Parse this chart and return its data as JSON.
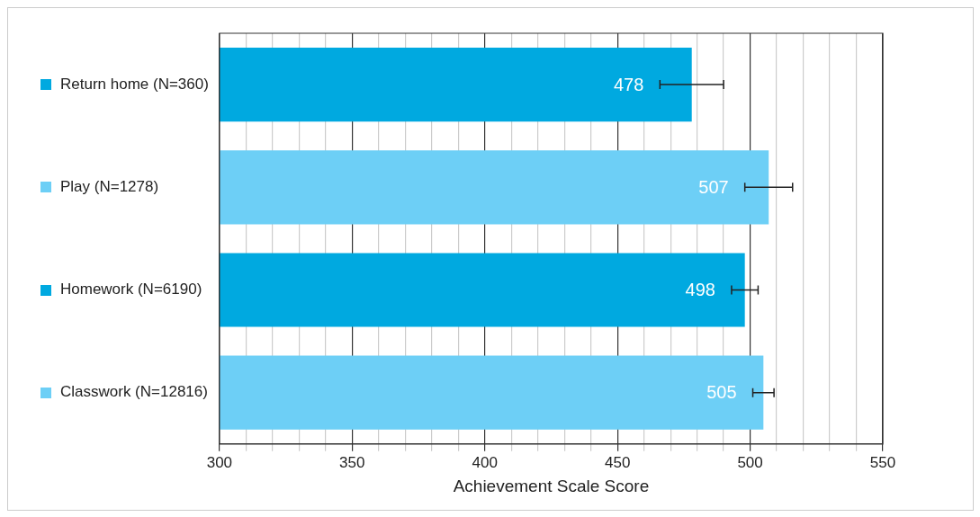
{
  "chart_data": {
    "type": "bar",
    "orientation": "horizontal",
    "xlabel": "Achievement Scale Score",
    "categories": [
      "Return home (N=360)",
      "Play (N=1278)",
      "Homework (N=6190)",
      "Classwork (N=12816)"
    ],
    "values": [
      478,
      507,
      498,
      505
    ],
    "colors": [
      "#00a9e0",
      "#6dcff6",
      "#00a9e0",
      "#6dcff6"
    ],
    "errors": [
      12,
      9,
      5,
      4
    ],
    "xlim": [
      300,
      550
    ],
    "xticks": [
      300,
      {
        "value": 310,
        "label": null
      },
      {
        "value": 320,
        "label": null
      },
      {
        "value": 330,
        "label": null
      },
      {
        "value": 340,
        "label": null
      },
      350,
      {
        "value": 360,
        "label": null
      },
      {
        "value": 370,
        "label": null
      },
      {
        "value": 380,
        "label": null
      },
      {
        "value": 390,
        "label": null
      },
      400,
      {
        "value": 410,
        "label": null
      },
      {
        "value": 420,
        "label": null
      },
      {
        "value": 430,
        "label": null
      },
      {
        "value": 440,
        "label": null
      },
      450,
      {
        "value": 460,
        "label": null
      },
      {
        "value": 470,
        "label": null
      },
      {
        "value": 480,
        "label": null
      },
      {
        "value": 490,
        "label": null
      },
      500,
      {
        "value": 510,
        "label": null
      },
      {
        "value": 520,
        "label": null
      },
      {
        "value": 530,
        "label": null
      },
      {
        "value": 540,
        "label": null
      },
      550
    ],
    "grid": "x",
    "data_labels": true
  }
}
